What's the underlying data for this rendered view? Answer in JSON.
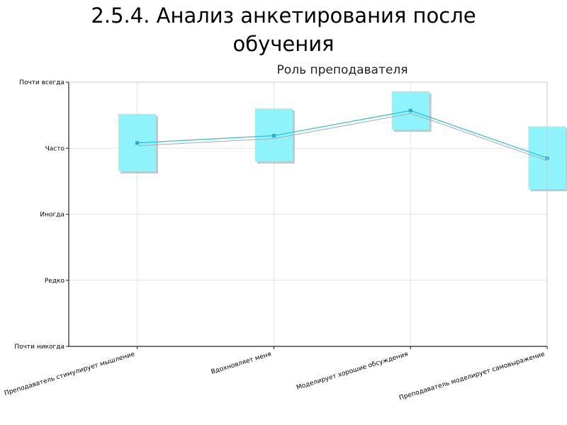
{
  "slide": {
    "title_line1": "2.5.4. Анализ анкетирования после",
    "title_line2": "обучения"
  },
  "chart_data": {
    "type": "line",
    "title": "Роль преподавателя",
    "xlabel": "",
    "ylabel": "",
    "y_levels": [
      "Почти никогда",
      "Редко",
      "Иногда",
      "Часто",
      "Почти всегда"
    ],
    "ylim": [
      0,
      4
    ],
    "grid": true,
    "categories": [
      "Преподаватель стимулирует мышление",
      "Вдохновляет меня",
      "Моделирует хорошие обсуждения",
      "Преподаватель моделирует самовыражение"
    ],
    "values": [
      3.08,
      3.19,
      3.57,
      2.85
    ],
    "box_low": [
      2.65,
      2.8,
      3.28,
      2.38
    ],
    "box_high": [
      3.52,
      3.6,
      3.86,
      3.33
    ],
    "colors": {
      "box_fill": "#8ef3fa",
      "box_shadow": "#b8b8b8",
      "line": "#33c2d6",
      "marker": "#22aed0",
      "shadow_line": "#aaaaaa",
      "grid": "#e3e3e3",
      "axis": "#222222"
    }
  }
}
